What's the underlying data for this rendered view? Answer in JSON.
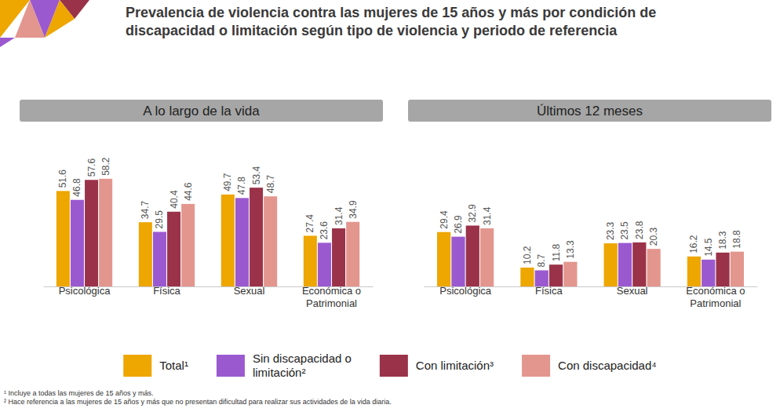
{
  "title": "Prevalencia de violencia contra las mujeres de 15 años y más por condición de discapacidad o limitación según tipo de violencia y periodo de referencia",
  "footnotes": [
    "¹ Incluye a todas las mujeres de 15 años y más.",
    "² Hace referencia a las mujeres de 15 años y más que no presentan dificultad para realizar sus actividades de la vida diaria."
  ],
  "chart_data": [
    {
      "type": "bar",
      "title": "A lo largo de la vida",
      "categories": [
        "Psicológica",
        "Física",
        "Sexual",
        "Económica o Patrimonial"
      ],
      "series": [
        {
          "name": "Total¹",
          "color": "#eea600",
          "values": [
            51.6,
            34.7,
            49.7,
            27.4
          ]
        },
        {
          "name": "Sin discapacidad o limitación²",
          "color": "#9b59d0",
          "values": [
            46.8,
            29.5,
            47.8,
            23.6
          ]
        },
        {
          "name": "Con limitación³",
          "color": "#9a3349",
          "values": [
            57.6,
            40.4,
            53.4,
            31.4
          ]
        },
        {
          "name": "Con discapacidad⁴",
          "color": "#e3968e",
          "values": [
            58.2,
            44.6,
            48.7,
            34.9
          ]
        }
      ],
      "ylim": [
        0,
        70
      ],
      "tick_labels": false,
      "grid": false,
      "data_labels": true,
      "legend": "bottom"
    },
    {
      "type": "bar",
      "title": "Últimos 12 meses",
      "categories": [
        "Psicológica",
        "Física",
        "Sexual",
        "Económica o Patrimonial"
      ],
      "series": [
        {
          "color": "#eea600",
          "values": [
            29.4,
            10.2,
            23.3,
            16.2
          ]
        },
        {
          "color": "#9b59d0",
          "values": [
            26.9,
            8.7,
            23.5,
            14.5
          ]
        },
        {
          "color": "#9a3349",
          "values": [
            32.9,
            11.8,
            23.8,
            18.3
          ]
        },
        {
          "color": "#e3968e",
          "values": [
            31.4,
            13.3,
            20.3,
            18.8
          ]
        }
      ],
      "ylim": [
        0,
        70
      ],
      "tick_labels": false,
      "grid": false,
      "data_labels": true
    }
  ]
}
